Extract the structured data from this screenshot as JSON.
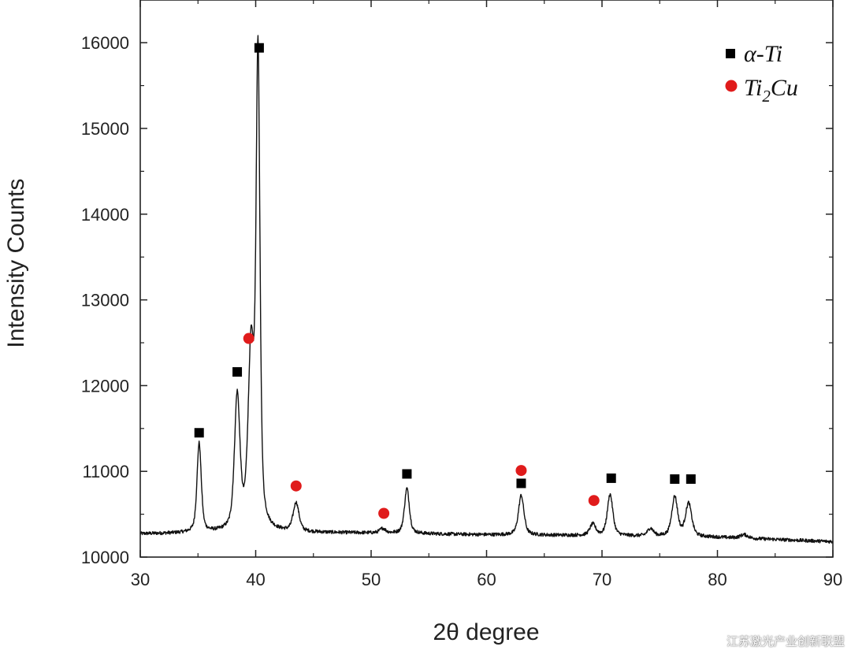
{
  "chart_data": {
    "type": "line",
    "xlabel": "2θ degree",
    "ylabel": "Intensity Counts",
    "xlim": [
      30,
      90
    ],
    "ylim": [
      10000,
      16500
    ],
    "x_ticks": [
      30,
      40,
      50,
      60,
      70,
      80,
      90
    ],
    "y_ticks": [
      10000,
      11000,
      12000,
      13000,
      14000,
      15000,
      16000
    ],
    "grid": false,
    "legend_position": "top-right",
    "colors": {
      "line": "#111111",
      "alpha_ti": "#000000",
      "ti2cu": "#e01b1b"
    },
    "baseline": [
      [
        30,
        10270
      ],
      [
        40,
        10290
      ],
      [
        50,
        10280
      ],
      [
        60,
        10260
      ],
      [
        70,
        10250
      ],
      [
        80,
        10230
      ],
      [
        90,
        10180
      ]
    ],
    "peaks": [
      {
        "x": 35.1,
        "y": 11320,
        "w": 0.22
      },
      {
        "x": 38.4,
        "y": 11840,
        "w": 0.28
      },
      {
        "x": 39.6,
        "y": 12330,
        "w": 0.3
      },
      {
        "x": 40.2,
        "y": 15780,
        "w": 0.2
      },
      {
        "x": 43.5,
        "y": 10620,
        "w": 0.3
      },
      {
        "x": 51.0,
        "y": 10330,
        "w": 0.3
      },
      {
        "x": 53.1,
        "y": 10800,
        "w": 0.25
      },
      {
        "x": 63.0,
        "y": 10720,
        "w": 0.28
      },
      {
        "x": 69.2,
        "y": 10380,
        "w": 0.3
      },
      {
        "x": 70.7,
        "y": 10730,
        "w": 0.28
      },
      {
        "x": 74.2,
        "y": 10330,
        "w": 0.3
      },
      {
        "x": 76.3,
        "y": 10700,
        "w": 0.3
      },
      {
        "x": 77.5,
        "y": 10620,
        "w": 0.32
      },
      {
        "x": 82.3,
        "y": 10260,
        "w": 0.4
      }
    ],
    "series": [
      {
        "name": "α-Ti",
        "marker": "square",
        "points": [
          [
            35.1,
            11450
          ],
          [
            38.4,
            12160
          ],
          [
            40.3,
            15940
          ],
          [
            53.1,
            10970
          ],
          [
            63.0,
            10860
          ],
          [
            70.8,
            10920
          ],
          [
            76.3,
            10910
          ],
          [
            77.7,
            10910
          ]
        ]
      },
      {
        "name": "Ti2Cu",
        "marker": "circle",
        "points": [
          [
            39.4,
            12550
          ],
          [
            43.5,
            10830
          ],
          [
            51.1,
            10510
          ],
          [
            63.0,
            11010
          ],
          [
            69.3,
            10660
          ]
        ]
      }
    ],
    "legend": [
      {
        "marker": "square",
        "base": "α-Ti",
        "sub": ""
      },
      {
        "marker": "circle",
        "base": "Ti",
        "sub": "2",
        "tail": "Cu"
      }
    ]
  },
  "watermark": "江苏激光产业创新联盟"
}
